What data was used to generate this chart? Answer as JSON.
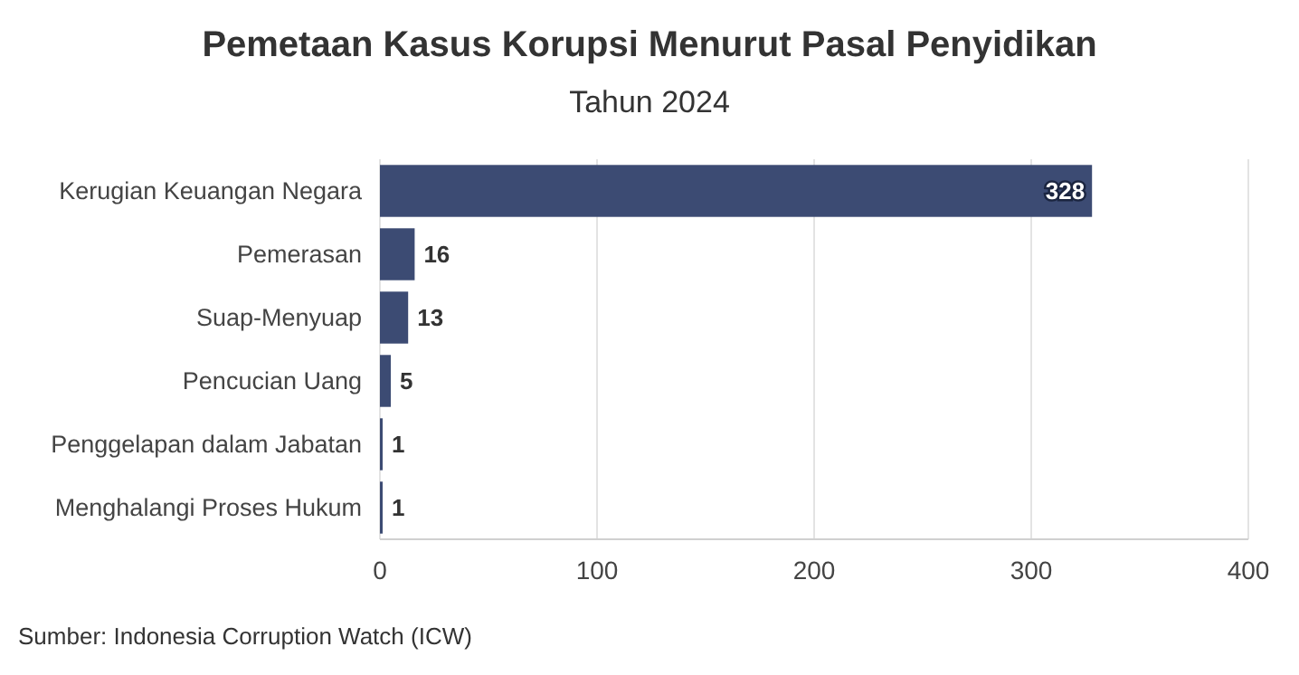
{
  "chart_data": {
    "type": "bar",
    "orientation": "horizontal",
    "title": "Pemetaan Kasus Korupsi Menurut Pasal Penyidikan",
    "subtitle": "Tahun 2024",
    "categories": [
      "Kerugian Keuangan Negara",
      "Pemerasan",
      "Suap-Menyuap",
      "Pencucian Uang",
      "Penggelapan dalam Jabatan",
      "Menghalangi Proses Hukum"
    ],
    "values": [
      328,
      16,
      13,
      5,
      1,
      1
    ],
    "color": "#3c4b73",
    "xlim": [
      0,
      400
    ],
    "xticks": [
      0,
      100,
      200,
      300,
      400
    ],
    "grid": "x",
    "data_labels": true,
    "annotations": [
      "Sumber: Indonesia Corruption Watch (ICW)"
    ]
  }
}
